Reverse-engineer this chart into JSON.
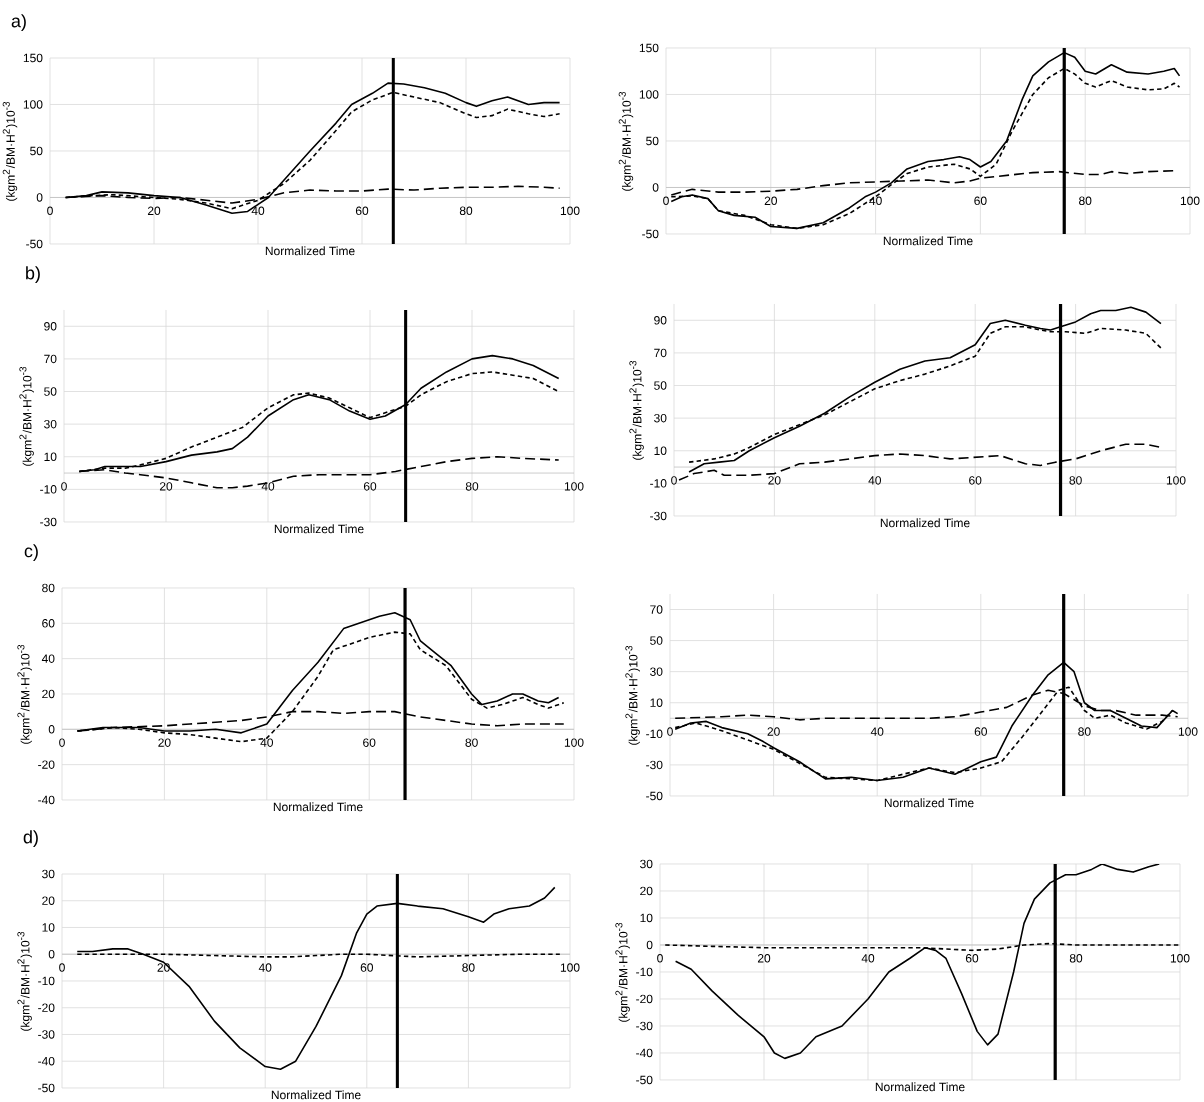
{
  "chart_data": [
    {
      "type": "line",
      "title": "a)",
      "xlabel": "Normalized Time",
      "ylabel": "(kgm$^{2}$/BM·H$^{2}$)10$^{-3}$",
      "xlim": [
        0,
        100
      ],
      "xticks": [
        0,
        20,
        40,
        60,
        80,
        100
      ],
      "ylim": [
        -50,
        150
      ],
      "yticks": [
        -50,
        0,
        50,
        100,
        150
      ],
      "grid": true,
      "ref_lines": [
        {
          "axis": "x",
          "value": 66,
          "color": "#000000"
        }
      ],
      "series": [
        {
          "color": "#000000",
          "line_style": "solid",
          "x": [
            3,
            7,
            10,
            15,
            20,
            25,
            30,
            35,
            38,
            42,
            46,
            50,
            55,
            58,
            62,
            65,
            68,
            72,
            76,
            80,
            82,
            85,
            88,
            92,
            95,
            98
          ],
          "values": [
            0,
            2,
            6,
            5,
            2,
            0,
            -8,
            -17,
            -15,
            0,
            25,
            50,
            80,
            100,
            112,
            123,
            122,
            118,
            112,
            102,
            98,
            104,
            108,
            100,
            102,
            102
          ]
        },
        {
          "color": "#000000",
          "line_style": "dashed",
          "x": [
            3,
            8,
            12,
            20,
            25,
            30,
            35,
            40,
            45,
            50,
            55,
            58,
            62,
            66,
            70,
            75,
            80,
            82,
            85,
            88,
            92,
            95,
            98
          ],
          "values": [
            0,
            2,
            3,
            0,
            -2,
            -6,
            -12,
            -3,
            15,
            40,
            72,
            92,
            105,
            113,
            108,
            102,
            90,
            86,
            88,
            95,
            90,
            87,
            90
          ]
        },
        {
          "color": "#000000",
          "line_style": "dashed",
          "x": [
            3,
            10,
            15,
            20,
            25,
            30,
            35,
            40,
            45,
            50,
            55,
            60,
            65,
            70,
            75,
            80,
            85,
            90,
            95,
            98
          ],
          "values": [
            0,
            2,
            0,
            -1,
            0,
            -3,
            -6,
            -2,
            5,
            8,
            7,
            7,
            9,
            8,
            10,
            11,
            11,
            12,
            11,
            10
          ]
        }
      ]
    },
    {
      "type": "line",
      "xlabel": "Normalized Time",
      "ylabel": "(kgm$^{2}$/BM·H$^{2}$)10$^{-3}$",
      "xlim": [
        0,
        100
      ],
      "xticks": [
        0,
        20,
        40,
        60,
        80,
        100
      ],
      "ylim": [
        -50,
        150
      ],
      "yticks": [
        -50,
        0,
        50,
        100,
        150
      ],
      "grid": true,
      "ref_lines": [
        {
          "axis": "x",
          "value": 76,
          "color": "#000000"
        }
      ],
      "series": [
        {
          "color": "#000000",
          "line_style": "solid",
          "x": [
            1,
            3,
            5,
            8,
            10,
            13,
            17,
            20,
            25,
            30,
            35,
            38,
            40,
            43,
            46,
            50,
            53,
            56,
            58,
            60,
            62,
            65,
            68,
            70,
            73,
            76,
            78,
            80,
            82,
            85,
            88,
            92,
            95,
            97,
            98
          ],
          "values": [
            -15,
            -10,
            -8,
            -12,
            -25,
            -30,
            -32,
            -42,
            -44,
            -38,
            -22,
            -10,
            -5,
            5,
            20,
            28,
            30,
            33,
            30,
            22,
            28,
            50,
            95,
            120,
            135,
            145,
            140,
            125,
            122,
            132,
            124,
            122,
            125,
            128,
            120
          ]
        },
        {
          "color": "#000000",
          "line_style": "dashed",
          "x": [
            1,
            5,
            8,
            10,
            15,
            20,
            25,
            30,
            35,
            40,
            43,
            46,
            50,
            55,
            58,
            60,
            63,
            66,
            70,
            73,
            76,
            78,
            80,
            82,
            85,
            88,
            92,
            95,
            97,
            98
          ],
          "values": [
            -10,
            -9,
            -12,
            -25,
            -30,
            -40,
            -44,
            -40,
            -28,
            -10,
            3,
            15,
            22,
            25,
            20,
            12,
            25,
            60,
            100,
            118,
            128,
            122,
            112,
            108,
            115,
            108,
            105,
            106,
            112,
            108
          ]
        },
        {
          "color": "#000000",
          "line_style": "dashed",
          "x": [
            1,
            5,
            10,
            15,
            20,
            25,
            30,
            35,
            40,
            45,
            50,
            55,
            58,
            60,
            65,
            70,
            75,
            80,
            83,
            85,
            88,
            92,
            97
          ],
          "values": [
            -8,
            -2,
            -5,
            -5,
            -4,
            -2,
            2,
            5,
            6,
            7,
            8,
            5,
            7,
            10,
            13,
            16,
            17,
            14,
            14,
            17,
            15,
            17,
            18
          ]
        }
      ]
    },
    {
      "type": "line",
      "title": "b)",
      "xlabel": "Normalized Time",
      "ylabel": "(kgm$^{2}$/BM·H$^{2}$)10$^{-3}$",
      "xlim": [
        0,
        100
      ],
      "xticks": [
        0,
        20,
        40,
        60,
        80,
        100
      ],
      "ylim": [
        -30,
        100
      ],
      "yticks": [
        -30,
        -10,
        10,
        30,
        50,
        70,
        90
      ],
      "grid": true,
      "ref_lines": [
        {
          "axis": "x",
          "value": 67,
          "color": "#000000"
        }
      ],
      "series": [
        {
          "color": "#000000",
          "line_style": "solid",
          "x": [
            3,
            6,
            8,
            10,
            15,
            20,
            25,
            30,
            33,
            36,
            40,
            45,
            48,
            52,
            56,
            60,
            63,
            67,
            70,
            75,
            80,
            84,
            88,
            92,
            97
          ],
          "values": [
            1,
            2,
            4,
            4,
            4,
            7,
            11,
            13,
            15,
            22,
            35,
            45,
            48,
            45,
            38,
            33,
            35,
            42,
            52,
            62,
            70,
            72,
            70,
            66,
            58
          ]
        },
        {
          "color": "#000000",
          "line_style": "dashed",
          "x": [
            3,
            8,
            12,
            15,
            20,
            25,
            30,
            35,
            40,
            45,
            48,
            52,
            56,
            60,
            63,
            67,
            70,
            75,
            80,
            84,
            88,
            92,
            97
          ],
          "values": [
            1,
            3,
            3,
            5,
            9,
            16,
            22,
            28,
            40,
            48,
            49,
            46,
            40,
            34,
            37,
            41,
            48,
            56,
            61,
            62,
            60,
            58,
            50
          ]
        },
        {
          "color": "#000000",
          "line_style": "dashed",
          "x": [
            3,
            8,
            12,
            15,
            20,
            25,
            30,
            33,
            36,
            40,
            45,
            50,
            55,
            60,
            65,
            70,
            75,
            80,
            85,
            90,
            97
          ],
          "values": [
            1,
            2,
            0,
            -1,
            -3,
            -6,
            -9,
            -9,
            -8,
            -6,
            -2,
            -1,
            -1,
            -1,
            1,
            4,
            7,
            9,
            10,
            9,
            8
          ]
        }
      ]
    },
    {
      "type": "line",
      "xlabel": "Normalized Time",
      "ylabel": "(kgm$^{2}$/BM·H$^{2}$)10$^{-3}$",
      "xlim": [
        0,
        100
      ],
      "xticks": [
        0,
        20,
        40,
        60,
        80,
        100
      ],
      "ylim": [
        -30,
        100
      ],
      "yticks": [
        -30,
        -10,
        10,
        30,
        50,
        70,
        90
      ],
      "grid": true,
      "ref_lines": [
        {
          "axis": "x",
          "value": 77,
          "color": "#000000"
        }
      ],
      "series": [
        {
          "color": "#000000",
          "line_style": "solid",
          "x": [
            3,
            6,
            9,
            12,
            15,
            20,
            25,
            30,
            35,
            40,
            45,
            50,
            55,
            60,
            63,
            66,
            70,
            73,
            75,
            77,
            80,
            83,
            85,
            88,
            91,
            94,
            97
          ],
          "values": [
            -3,
            2,
            3,
            4,
            10,
            18,
            25,
            33,
            43,
            52,
            60,
            65,
            67,
            75,
            88,
            90,
            87,
            85,
            84,
            86,
            89,
            94,
            96,
            96,
            98,
            95,
            88
          ]
        },
        {
          "color": "#000000",
          "line_style": "dashed",
          "x": [
            3,
            8,
            12,
            15,
            20,
            25,
            30,
            35,
            40,
            45,
            50,
            55,
            60,
            63,
            66,
            70,
            73,
            75,
            78,
            82,
            85,
            90,
            94,
            97
          ],
          "values": [
            3,
            5,
            8,
            12,
            20,
            26,
            32,
            40,
            48,
            53,
            57,
            62,
            68,
            82,
            86,
            86,
            84,
            83,
            83,
            82,
            85,
            84,
            82,
            73
          ]
        },
        {
          "color": "#000000",
          "line_style": "dashed",
          "x": [
            1,
            4,
            8,
            10,
            15,
            20,
            25,
            30,
            35,
            40,
            45,
            50,
            55,
            60,
            65,
            70,
            73,
            76,
            80,
            85,
            90,
            94,
            97
          ],
          "values": [
            -8,
            -4,
            -2,
            -5,
            -5,
            -4,
            2,
            3,
            5,
            7,
            8,
            7,
            5,
            6,
            7,
            2,
            1,
            3,
            5,
            10,
            14,
            14,
            12
          ]
        }
      ]
    },
    {
      "type": "line",
      "title": "c)",
      "xlabel": "Normalized Time",
      "ylabel": "(kgm$^{2}$/BM·H$^{2}$)10$^{-3}$",
      "xlim": [
        0,
        100
      ],
      "xticks": [
        0,
        20,
        40,
        60,
        80,
        100
      ],
      "ylim": [
        -40,
        80
      ],
      "yticks": [
        -40,
        -20,
        0,
        20,
        40,
        60,
        80
      ],
      "grid": true,
      "ref_lines": [
        {
          "axis": "x",
          "value": 67,
          "color": "#000000"
        }
      ],
      "series": [
        {
          "color": "#000000",
          "line_style": "solid",
          "x": [
            3,
            8,
            15,
            20,
            25,
            30,
            35,
            40,
            45,
            50,
            55,
            58,
            62,
            65,
            68,
            70,
            73,
            76,
            80,
            82,
            85,
            88,
            90,
            93,
            95,
            97
          ],
          "values": [
            -1,
            1,
            1,
            -1,
            -1,
            0,
            -2,
            3,
            22,
            38,
            57,
            60,
            64,
            66,
            62,
            50,
            43,
            36,
            20,
            14,
            16,
            20,
            20,
            16,
            15,
            18
          ]
        },
        {
          "color": "#000000",
          "line_style": "dashed",
          "x": [
            3,
            10,
            15,
            20,
            25,
            30,
            35,
            40,
            45,
            50,
            53,
            56,
            60,
            65,
            68,
            70,
            75,
            80,
            83,
            86,
            90,
            93,
            95,
            98
          ],
          "values": [
            -1,
            1,
            0,
            -2,
            -3,
            -5,
            -7,
            -5,
            10,
            30,
            45,
            48,
            52,
            55,
            54,
            45,
            36,
            17,
            12,
            14,
            18,
            14,
            12,
            15
          ]
        },
        {
          "color": "#000000",
          "line_style": "dashed",
          "x": [
            3,
            10,
            20,
            25,
            30,
            35,
            40,
            45,
            50,
            55,
            60,
            65,
            70,
            75,
            80,
            85,
            90,
            98
          ],
          "values": [
            -1,
            1,
            2,
            3,
            4,
            5,
            7,
            10,
            10,
            9,
            10,
            10,
            7,
            5,
            3,
            2,
            3,
            3
          ]
        }
      ]
    },
    {
      "type": "line",
      "xlabel": "Normalized Time",
      "ylabel": "(kgm$^{2}$/BM·H$^{2}$)10$^{-3}$",
      "xlim": [
        0,
        100
      ],
      "xticks": [
        0,
        20,
        40,
        60,
        80,
        100
      ],
      "ylim": [
        -50,
        80
      ],
      "yticks": [
        -50,
        -30,
        -10,
        10,
        30,
        50,
        70
      ],
      "grid": true,
      "ref_lines": [
        {
          "axis": "x",
          "value": 76,
          "color": "#000000"
        }
      ],
      "series": [
        {
          "color": "#000000",
          "line_style": "solid",
          "x": [
            1,
            4,
            7,
            10,
            15,
            18,
            20,
            25,
            30,
            35,
            40,
            45,
            50,
            55,
            60,
            63,
            66,
            70,
            73,
            76,
            78,
            80,
            82,
            85,
            88,
            91,
            94,
            97,
            98
          ],
          "values": [
            -7,
            -3,
            -2,
            -6,
            -10,
            -15,
            -19,
            -28,
            -39,
            -38,
            -40,
            -38,
            -32,
            -36,
            -28,
            -25,
            -5,
            15,
            28,
            36,
            30,
            10,
            5,
            5,
            0,
            -5,
            -6,
            5,
            3
          ]
        },
        {
          "color": "#000000",
          "line_style": "dashed",
          "x": [
            1,
            5,
            10,
            20,
            30,
            40,
            50,
            55,
            60,
            64,
            68,
            72,
            75,
            77,
            80,
            82,
            85,
            88,
            92,
            95,
            97
          ],
          "values": [
            -6,
            -3,
            -8,
            -20,
            -38,
            -40,
            -32,
            -35,
            -32,
            -28,
            -12,
            5,
            18,
            20,
            5,
            0,
            2,
            -3,
            -7,
            -2,
            5
          ]
        },
        {
          "color": "#000000",
          "line_style": "dashed",
          "x": [
            1,
            10,
            15,
            20,
            25,
            30,
            35,
            40,
            50,
            55,
            60,
            65,
            70,
            73,
            76,
            80,
            83,
            86,
            90,
            95,
            98
          ],
          "values": [
            0,
            1,
            2,
            1,
            -1,
            0,
            0,
            0,
            0,
            1,
            4,
            7,
            15,
            18,
            16,
            8,
            5,
            5,
            2,
            2,
            1
          ]
        }
      ]
    },
    {
      "type": "line",
      "title": "d)",
      "xlabel": "Normalized Time",
      "ylabel": "(kgm$^{2}$/BM·H$^{2}$)10$^{-3}$",
      "xlim": [
        0,
        100
      ],
      "xticks": [
        0,
        20,
        40,
        60,
        80,
        100
      ],
      "ylim": [
        -50,
        30
      ],
      "yticks": [
        -50,
        -40,
        -30,
        -20,
        -10,
        0,
        10,
        20,
        30
      ],
      "grid": true,
      "ref_lines": [
        {
          "axis": "x",
          "value": 66,
          "color": "#000000"
        }
      ],
      "series": [
        {
          "color": "#000000",
          "line_style": "solid",
          "x": [
            3,
            6,
            10,
            13,
            16,
            20,
            25,
            30,
            35,
            40,
            43,
            46,
            50,
            55,
            58,
            60,
            62,
            66,
            70,
            75,
            80,
            83,
            85,
            88,
            92,
            95,
            97
          ],
          "values": [
            1,
            1,
            2,
            2,
            0,
            -3,
            -12,
            -25,
            -35,
            -42,
            -43,
            -40,
            -27,
            -8,
            8,
            15,
            18,
            19,
            18,
            17,
            14,
            12,
            15,
            17,
            18,
            21,
            25
          ]
        },
        {
          "color": "#000000",
          "line_style": "dashed",
          "x": [
            3,
            10,
            20,
            30,
            40,
            45,
            50,
            55,
            60,
            70,
            80,
            90,
            98
          ],
          "values": [
            0,
            0,
            0,
            -0.5,
            -1,
            -1,
            -0.5,
            0,
            0,
            -1,
            -0.5,
            0,
            0
          ]
        }
      ]
    },
    {
      "type": "line",
      "xlabel": "Normalized Time",
      "ylabel": "(kgm$^{2}$/BM·H$^{2}$)10$^{-3}$",
      "xlim": [
        0,
        100
      ],
      "xticks": [
        0,
        20,
        40,
        60,
        80,
        100
      ],
      "ylim": [
        -50,
        30
      ],
      "yticks": [
        -50,
        -40,
        -30,
        -20,
        -10,
        0,
        10,
        20,
        30
      ],
      "grid": true,
      "ref_lines": [
        {
          "axis": "x",
          "value": 76,
          "color": "#000000"
        }
      ],
      "series": [
        {
          "color": "#000000",
          "line_style": "solid",
          "x": [
            3,
            6,
            10,
            15,
            20,
            22,
            24,
            27,
            30,
            35,
            40,
            44,
            48,
            51,
            53,
            55,
            58,
            61,
            63,
            65,
            68,
            70,
            72,
            75,
            78,
            80,
            83,
            85,
            88,
            91,
            94,
            96
          ],
          "values": [
            -6,
            -9,
            -17,
            -26,
            -34,
            -40,
            -42,
            -40,
            -34,
            -30,
            -20,
            -10,
            -5,
            -1,
            -2,
            -5,
            -18,
            -32,
            -37,
            -33,
            -10,
            8,
            17,
            23,
            26,
            26,
            28,
            30,
            28,
            27,
            29,
            30
          ]
        },
        {
          "color": "#000000",
          "line_style": "dashed",
          "x": [
            1,
            10,
            20,
            30,
            40,
            50,
            55,
            60,
            65,
            70,
            75,
            80,
            90,
            100
          ],
          "values": [
            0,
            -0.5,
            -1,
            -1,
            -1,
            -1,
            -1.5,
            -2,
            -1.5,
            0,
            0.5,
            0,
            0,
            0
          ]
        }
      ]
    }
  ]
}
